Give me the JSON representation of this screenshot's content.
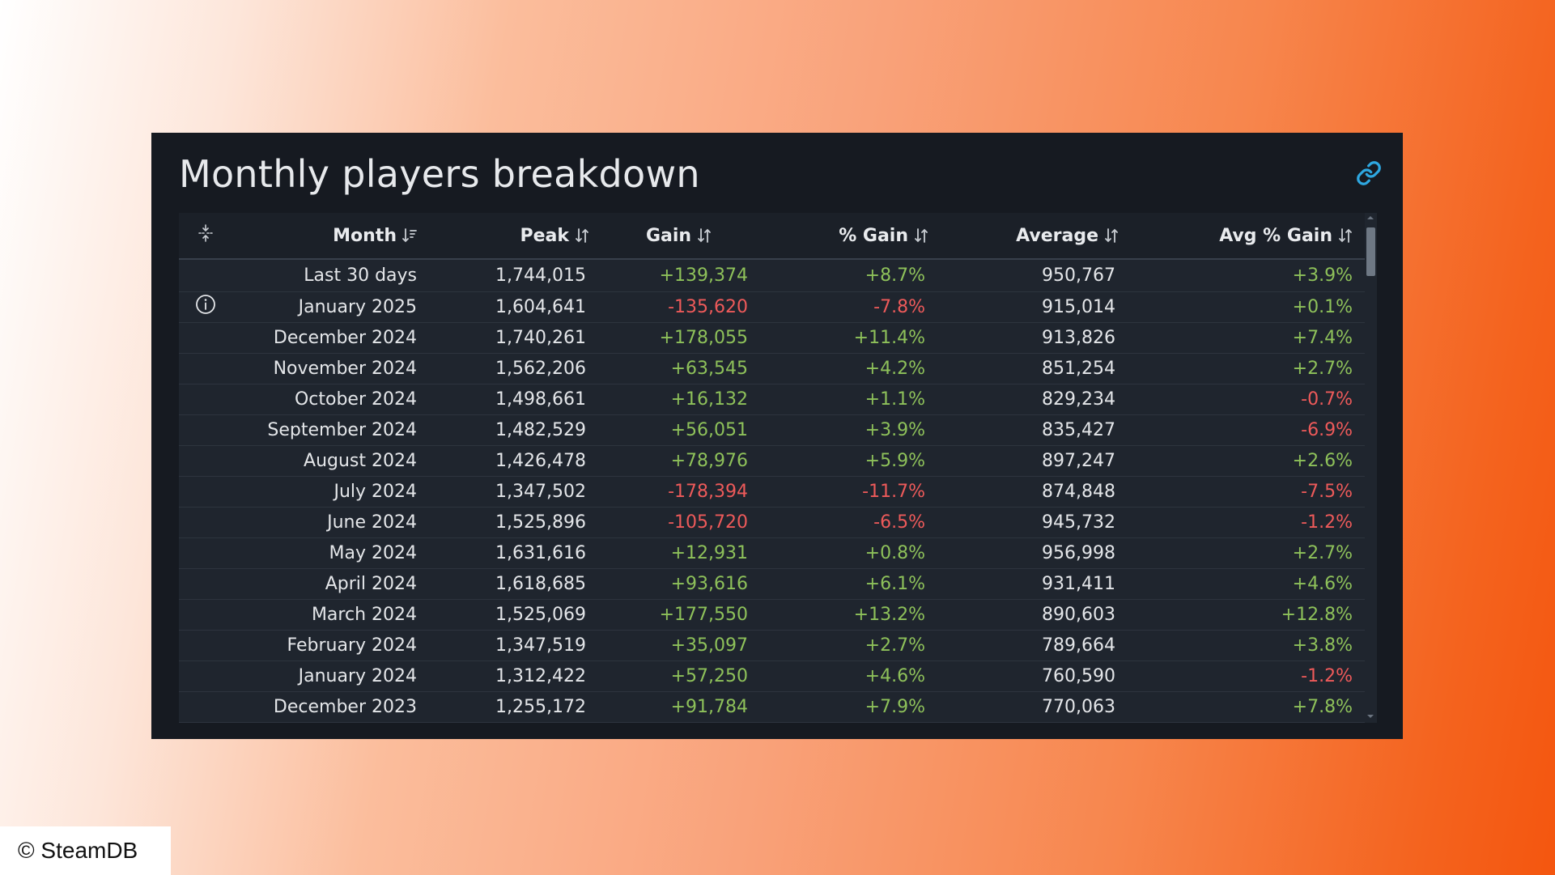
{
  "panel": {
    "title": "Monthly players breakdown",
    "link_icon": "link-icon",
    "accent_color": "#2ea7e0"
  },
  "table": {
    "columns": {
      "month": "Month",
      "peak": "Peak",
      "gain": "Gain",
      "pct_gain": "% Gain",
      "average": "Average",
      "avg_pct_gain": "Avg % Gain"
    },
    "header_icon": "drag-handle-icon",
    "positive_color": "#8ec15a",
    "negative_color": "#ee5a5a",
    "rows": [
      {
        "month": "Last 30 days",
        "peak": "1,744,015",
        "gain": "+139,374",
        "pct_gain": "+8.7%",
        "average": "950,767",
        "avg_pct_gain": "+3.9%"
      },
      {
        "month": "January 2025",
        "peak": "1,604,641",
        "gain": "-135,620",
        "pct_gain": "-7.8%",
        "average": "915,014",
        "avg_pct_gain": "+0.1%",
        "icon": "info-icon"
      },
      {
        "month": "December 2024",
        "peak": "1,740,261",
        "gain": "+178,055",
        "pct_gain": "+11.4%",
        "average": "913,826",
        "avg_pct_gain": "+7.4%"
      },
      {
        "month": "November 2024",
        "peak": "1,562,206",
        "gain": "+63,545",
        "pct_gain": "+4.2%",
        "average": "851,254",
        "avg_pct_gain": "+2.7%"
      },
      {
        "month": "October 2024",
        "peak": "1,498,661",
        "gain": "+16,132",
        "pct_gain": "+1.1%",
        "average": "829,234",
        "avg_pct_gain": "-0.7%"
      },
      {
        "month": "September 2024",
        "peak": "1,482,529",
        "gain": "+56,051",
        "pct_gain": "+3.9%",
        "average": "835,427",
        "avg_pct_gain": "-6.9%"
      },
      {
        "month": "August 2024",
        "peak": "1,426,478",
        "gain": "+78,976",
        "pct_gain": "+5.9%",
        "average": "897,247",
        "avg_pct_gain": "+2.6%"
      },
      {
        "month": "July 2024",
        "peak": "1,347,502",
        "gain": "-178,394",
        "pct_gain": "-11.7%",
        "average": "874,848",
        "avg_pct_gain": "-7.5%"
      },
      {
        "month": "June 2024",
        "peak": "1,525,896",
        "gain": "-105,720",
        "pct_gain": "-6.5%",
        "average": "945,732",
        "avg_pct_gain": "-1.2%"
      },
      {
        "month": "May 2024",
        "peak": "1,631,616",
        "gain": "+12,931",
        "pct_gain": "+0.8%",
        "average": "956,998",
        "avg_pct_gain": "+2.7%"
      },
      {
        "month": "April 2024",
        "peak": "1,618,685",
        "gain": "+93,616",
        "pct_gain": "+6.1%",
        "average": "931,411",
        "avg_pct_gain": "+4.6%"
      },
      {
        "month": "March 2024",
        "peak": "1,525,069",
        "gain": "+177,550",
        "pct_gain": "+13.2%",
        "average": "890,603",
        "avg_pct_gain": "+12.8%"
      },
      {
        "month": "February 2024",
        "peak": "1,347,519",
        "gain": "+35,097",
        "pct_gain": "+2.7%",
        "average": "789,664",
        "avg_pct_gain": "+3.8%"
      },
      {
        "month": "January 2024",
        "peak": "1,312,422",
        "gain": "+57,250",
        "pct_gain": "+4.6%",
        "average": "760,590",
        "avg_pct_gain": "-1.2%"
      },
      {
        "month": "December 2023",
        "peak": "1,255,172",
        "gain": "+91,784",
        "pct_gain": "+7.9%",
        "average": "770,063",
        "avg_pct_gain": "+7.8%"
      }
    ]
  },
  "footer": {
    "copyright": "© SteamDB"
  }
}
